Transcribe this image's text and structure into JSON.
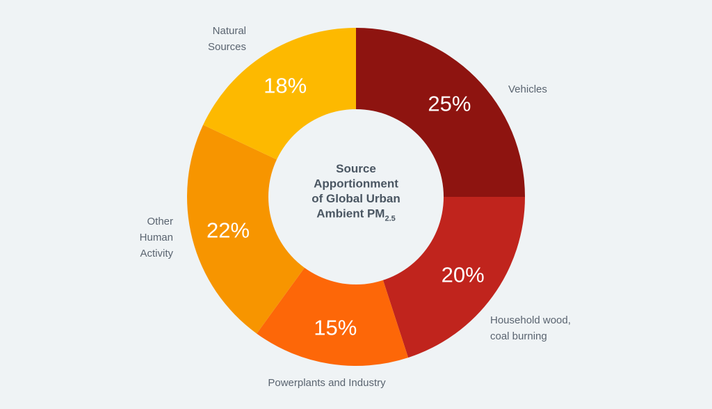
{
  "chart_data": {
    "type": "pie",
    "title": {
      "lines": [
        "Source",
        "Apportionment",
        "of Global Urban"
      ],
      "last_line_main": "Ambient PM",
      "last_line_sub": "2.5"
    },
    "slices": [
      {
        "name": "Vehicles",
        "label_lines": [
          "Vehicles"
        ],
        "value": 25,
        "value_label": "25%",
        "color": "#8e1410"
      },
      {
        "name": "Household wood, coal burning",
        "label_lines": [
          "Household wood,",
          "coal burning"
        ],
        "value": 20,
        "value_label": "20%",
        "color": "#c0241d"
      },
      {
        "name": "Powerplants and Industry",
        "label_lines": [
          "Powerplants and Industry"
        ],
        "value": 15,
        "value_label": "15%",
        "color": "#fd6708"
      },
      {
        "name": "Other Human Activity",
        "label_lines": [
          "Other",
          "Human",
          "Activity"
        ],
        "value": 22,
        "value_label": "22%",
        "color": "#f79500"
      },
      {
        "name": "Natural Sources",
        "label_lines": [
          "Natural",
          "Sources"
        ],
        "value": 18,
        "value_label": "18%",
        "color": "#fdb900"
      }
    ]
  },
  "colors": {
    "background": "#eff3f5",
    "center": "#eff3f5",
    "label_text": "#5a6470",
    "title_text": "#4a5662"
  }
}
